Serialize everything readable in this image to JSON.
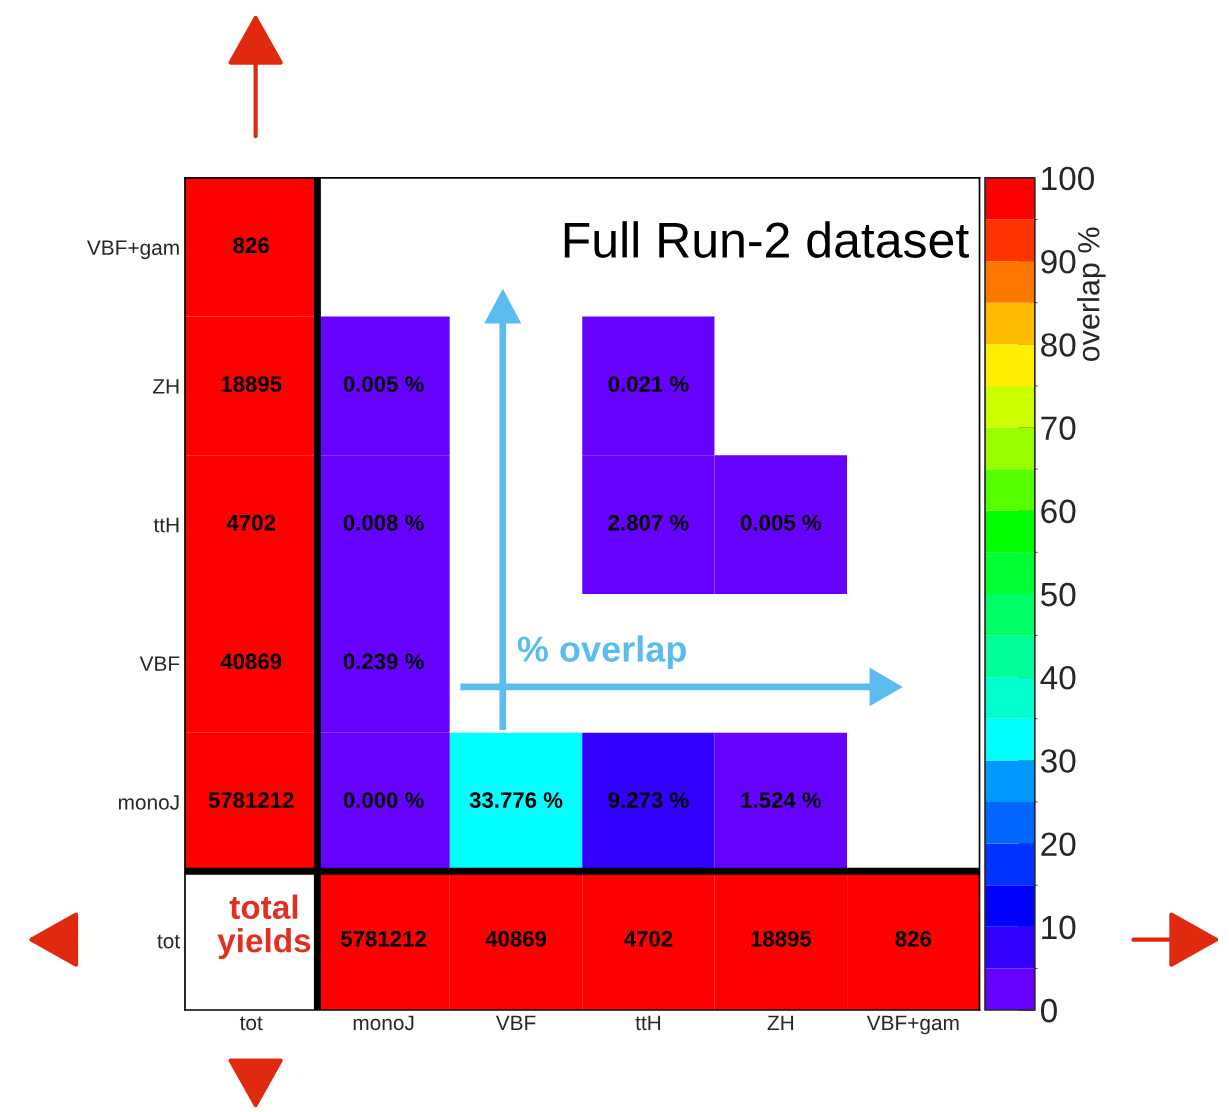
{
  "chart_data": {
    "type": "heatmap",
    "categories": [
      "tot",
      "monoJ",
      "VBF",
      "ttH",
      "ZH",
      "VBF+gam"
    ],
    "y_categories": [
      "VBF+gam",
      "ZH",
      "ttH",
      "VBF",
      "monoJ",
      "tot"
    ],
    "cells": [
      [
        826,
        null,
        null,
        null,
        null,
        null
      ],
      [
        18895,
        0.005,
        null,
        0.021,
        null,
        null
      ],
      [
        4702,
        0.008,
        null,
        2.807,
        0.005,
        null
      ],
      [
        40869,
        0.239,
        null,
        null,
        null,
        null
      ],
      [
        5781212,
        0.0,
        33.776,
        9.273,
        1.524,
        null
      ],
      [
        null,
        5781212,
        40869,
        4702,
        18895,
        826
      ]
    ],
    "cell_labels": [
      [
        "826",
        null,
        null,
        null,
        null,
        null
      ],
      [
        "18895",
        "0.005 %",
        null,
        "0.021 %",
        null,
        null
      ],
      [
        "4702",
        "0.008 %",
        null,
        "2.807 %",
        "0.005 %",
        null
      ],
      [
        "40869",
        "0.239 %",
        null,
        null,
        null,
        null
      ],
      [
        "5781212",
        "0.000 %",
        "33.776 %",
        "9.273 %",
        "1.524 %",
        null
      ],
      [
        null,
        "5781212",
        "40869",
        "4702",
        "18895",
        "826"
      ]
    ],
    "clim": [
      0,
      100
    ],
    "cticks": [
      0,
      10,
      20,
      30,
      40,
      50,
      60,
      70,
      80,
      90,
      100
    ],
    "clabel": "overlap %",
    "annotations": [
      "Full Run-2 dataset",
      "% overlap",
      "total yields"
    ]
  }
}
